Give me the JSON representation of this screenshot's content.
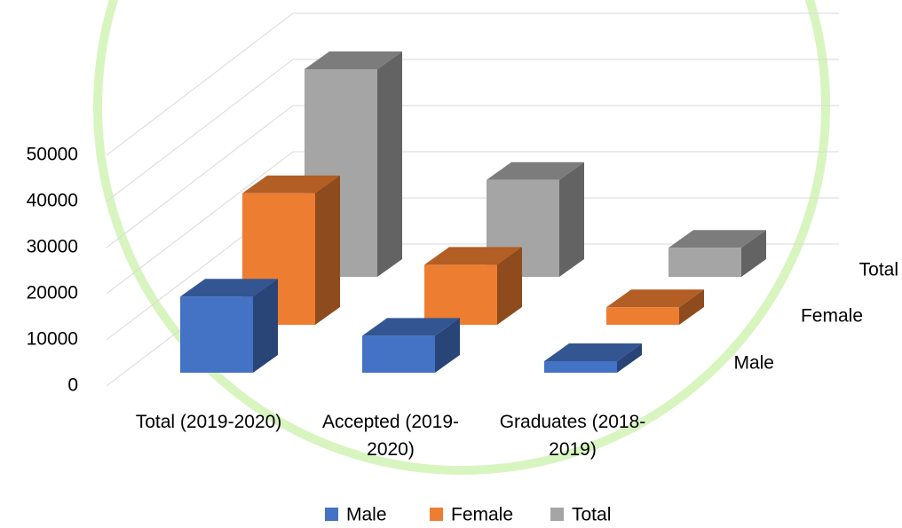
{
  "chart_data": {
    "type": "bar3d",
    "categories": [
      "Total (2019-2020)",
      "Accepted (2019-2020)",
      "Graduates (2018-2019)"
    ],
    "series": [
      {
        "name": "Male",
        "color": "#4472c4",
        "values": [
          16500,
          8000,
          2500
        ]
      },
      {
        "name": "Female",
        "color": "#ed7d31",
        "values": [
          28500,
          13000,
          3800
        ]
      },
      {
        "name": "Total",
        "color": "#a5a5a5",
        "values": [
          45000,
          21000,
          6300
        ]
      }
    ],
    "ylim": [
      0,
      50000
    ],
    "yticks": [
      0,
      10000,
      20000,
      30000,
      40000,
      50000
    ],
    "grid": true,
    "legend": "bottom"
  }
}
